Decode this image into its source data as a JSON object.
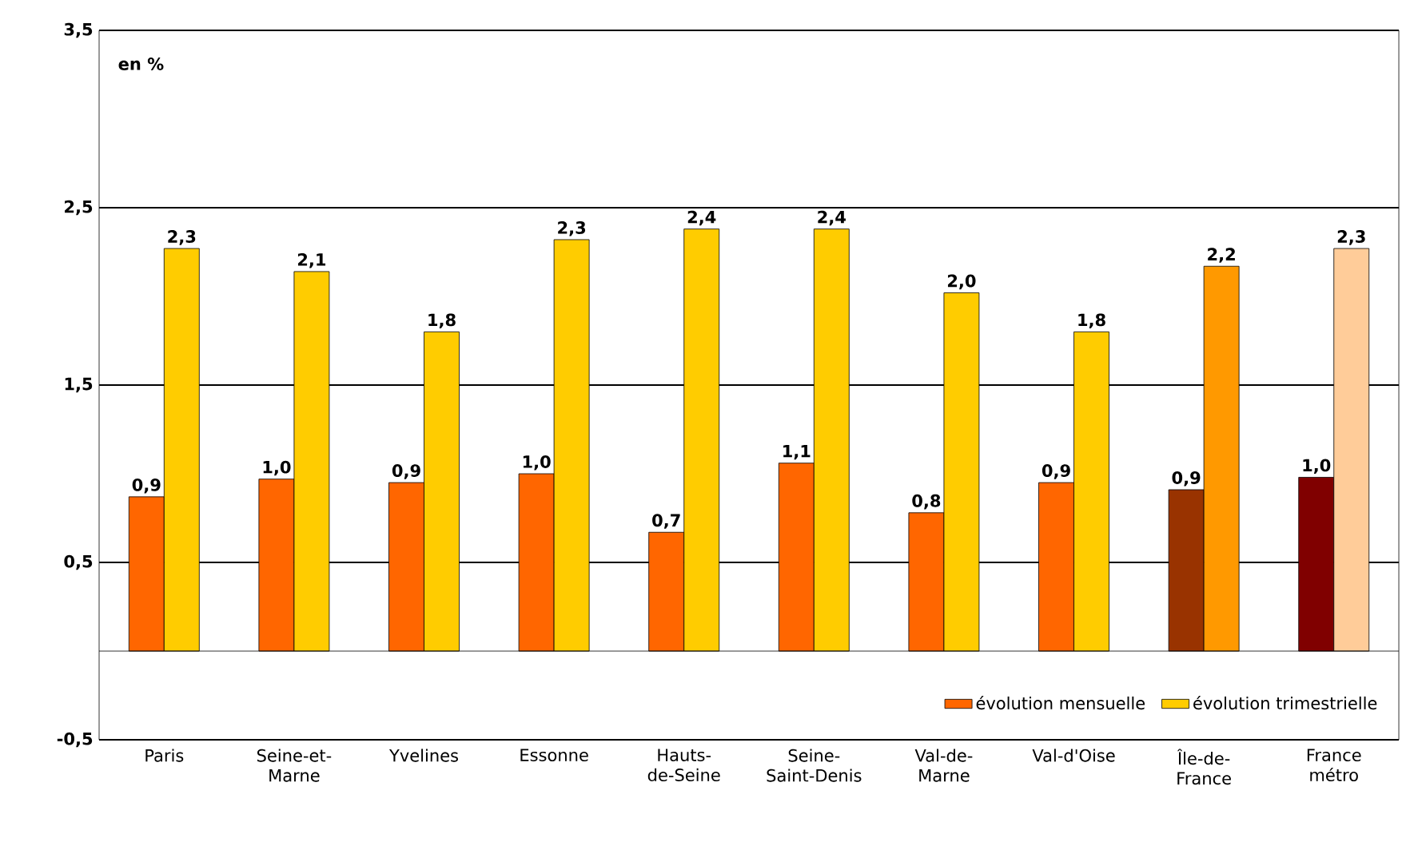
{
  "chart_data": {
    "type": "bar",
    "categories": [
      "Paris",
      "Seine-et-Marne",
      "Yvelines",
      "Essonne",
      "Hauts-de-Seine",
      "Seine-Saint-Denis",
      "Val-de-Marne",
      "Val-d'Oise",
      "Île-de-France",
      "France métro"
    ],
    "series": [
      {
        "name": "évolution mensuelle",
        "color": "#ff6600",
        "colors": [
          "#ff6600",
          "#ff6600",
          "#ff6600",
          "#ff6600",
          "#ff6600",
          "#ff6600",
          "#ff6600",
          "#ff6600",
          "#993300",
          "#800000"
        ],
        "values": [
          0.87,
          0.97,
          0.95,
          1.0,
          0.67,
          1.06,
          0.78,
          0.95,
          0.91,
          0.98
        ],
        "value_labels": [
          "0,9",
          "1,0",
          "0,9",
          "1,0",
          "0,7",
          "1,1",
          "0,8",
          "0,9",
          "0,9",
          "1,0"
        ]
      },
      {
        "name": "évolution trimestrielle",
        "color": "#ffcc00",
        "colors": [
          "#ffcc00",
          "#ffcc00",
          "#ffcc00",
          "#ffcc00",
          "#ffcc00",
          "#ffcc00",
          "#ffcc00",
          "#ffcc00",
          "#ff9900",
          "#ffcc99"
        ],
        "values": [
          2.27,
          2.14,
          1.8,
          2.32,
          2.38,
          2.38,
          2.02,
          1.8,
          2.17,
          2.27
        ],
        "value_labels": [
          "2,3",
          "2,1",
          "1,8",
          "2,3",
          "2,4",
          "2,4",
          "2,0",
          "1,8",
          "2,2",
          "2,3"
        ]
      }
    ],
    "ylim": [
      -0.5,
      3.5
    ],
    "yticks": [
      {
        "value": -0.5,
        "label": "-0,5"
      },
      {
        "value": 0.5,
        "label": "0,5"
      },
      {
        "value": 1.5,
        "label": "1,5"
      },
      {
        "value": 2.5,
        "label": "2,5"
      },
      {
        "value": 3.5,
        "label": "3,5"
      }
    ],
    "grid": "y",
    "legend": "bottom right",
    "annotations": [
      "en %"
    ]
  }
}
